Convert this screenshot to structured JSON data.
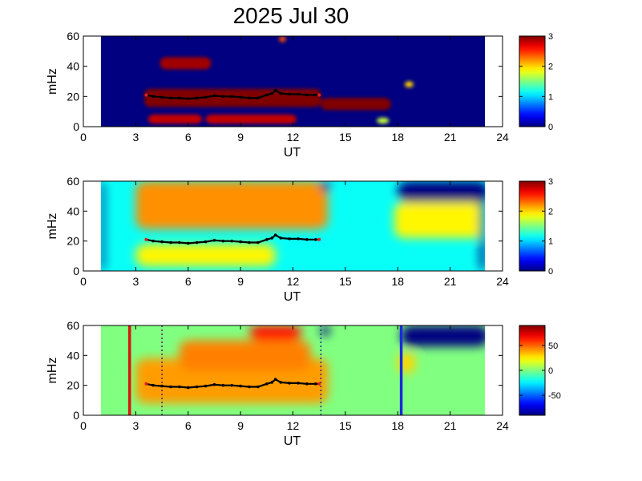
{
  "title": "2025 Jul 30",
  "chart_data": [
    {
      "type": "heatmap",
      "xlabel": "UT",
      "ylabel": "mHz",
      "xlim": [
        0,
        24
      ],
      "ylim": [
        0,
        60
      ],
      "xticks": [
        "0",
        "3",
        "6",
        "9",
        "12",
        "15",
        "18",
        "21",
        "24"
      ],
      "yticks": [
        "0",
        "20",
        "40",
        "60"
      ],
      "data_extent_ut": [
        1,
        23
      ],
      "colorbar": {
        "range": [
          0,
          3
        ],
        "ticks": [
          "0",
          "1",
          "2",
          "3"
        ]
      },
      "background_value": 0,
      "blobs": [
        {
          "ut": [
            3.5,
            13.6
          ],
          "mhz": [
            13,
            25
          ],
          "value": 3.0
        },
        {
          "ut": [
            13.6,
            17.6
          ],
          "mhz": [
            11,
            19
          ],
          "value": 3.0
        },
        {
          "ut": [
            4.4,
            7.3
          ],
          "mhz": [
            38,
            46
          ],
          "value": 2.9
        },
        {
          "ut": [
            3.7,
            6.8
          ],
          "mhz": [
            2,
            8
          ],
          "value": 2.8
        },
        {
          "ut": [
            7.0,
            12.2
          ],
          "mhz": [
            2,
            8
          ],
          "value": 2.8
        },
        {
          "ut": [
            16.8,
            17.5
          ],
          "mhz": [
            2,
            6
          ],
          "value": 1.7
        },
        {
          "ut": [
            11.2,
            11.6
          ],
          "mhz": [
            56,
            60
          ],
          "value": 2.4
        },
        {
          "ut": [
            18.4,
            18.9
          ],
          "mhz": [
            26,
            30
          ],
          "value": 2.0
        }
      ],
      "trace": {
        "ut": [
          3.6,
          4.0,
          4.5,
          5.0,
          5.5,
          6.0,
          6.5,
          7.0,
          7.5,
          8.0,
          8.5,
          9.0,
          9.5,
          10.0,
          10.5,
          10.8,
          11.0,
          11.3,
          11.8,
          12.3,
          12.8,
          13.3,
          13.5
        ],
        "mhz": [
          21,
          20,
          19.5,
          19,
          19,
          18.5,
          19,
          19.5,
          20.5,
          20,
          20,
          19.5,
          19,
          19,
          21,
          22,
          24,
          22,
          21.5,
          21.5,
          21,
          21,
          21
        ]
      }
    },
    {
      "type": "heatmap",
      "xlabel": "UT",
      "ylabel": "mHz",
      "xlim": [
        0,
        24
      ],
      "ylim": [
        0,
        60
      ],
      "xticks": [
        "0",
        "3",
        "6",
        "9",
        "12",
        "15",
        "18",
        "21",
        "24"
      ],
      "yticks": [
        "0",
        "20",
        "40",
        "60"
      ],
      "data_extent_ut": [
        1,
        23
      ],
      "colorbar": {
        "range": [
          0,
          3
        ],
        "ticks": [
          "0",
          "1",
          "2",
          "3"
        ]
      },
      "background_value": 1.15,
      "blobs": [
        {
          "ut": [
            7.5,
            12.5
          ],
          "mhz": [
            40,
            60
          ],
          "value": 3.0
        },
        {
          "ut": [
            8.0,
            11.5
          ],
          "mhz": [
            30,
            46
          ],
          "value": 2.8
        },
        {
          "ut": [
            3.0,
            14.0
          ],
          "mhz": [
            28,
            60
          ],
          "value": 2.2
        },
        {
          "ut": [
            3.5,
            9.5
          ],
          "mhz": [
            6,
            16
          ],
          "value": 2.2
        },
        {
          "ut": [
            3.0,
            11.0
          ],
          "mhz": [
            3,
            18
          ],
          "value": 1.9
        },
        {
          "ut": [
            17.8,
            20.2
          ],
          "mhz": [
            26,
            40
          ],
          "value": 2.6
        },
        {
          "ut": [
            17.8,
            23.0
          ],
          "mhz": [
            22,
            46
          ],
          "value": 1.9
        },
        {
          "ut": [
            18.0,
            23.2
          ],
          "mhz": [
            46,
            60
          ],
          "value": 0.0
        },
        {
          "ut": [
            1.0,
            1.2
          ],
          "mhz": [
            0,
            60
          ],
          "value": 0.0
        },
        {
          "ut": [
            22.7,
            23.0
          ],
          "mhz": [
            0,
            60
          ],
          "value": 0.0
        },
        {
          "ut": [
            13.6,
            14.1
          ],
          "mhz": [
            53,
            60
          ],
          "value": 0.0
        }
      ],
      "trace": {
        "ut": [
          3.6,
          4.0,
          4.5,
          5.0,
          5.5,
          6.0,
          6.5,
          7.0,
          7.5,
          8.0,
          8.5,
          9.0,
          9.5,
          10.0,
          10.5,
          10.8,
          11.0,
          11.3,
          11.8,
          12.3,
          12.8,
          13.3,
          13.5
        ],
        "mhz": [
          21,
          20,
          19.5,
          19,
          19,
          18.5,
          19,
          19.5,
          20.5,
          20,
          20,
          19.5,
          19,
          19,
          21,
          22,
          24,
          22,
          21.5,
          21.5,
          21,
          21,
          21
        ]
      }
    },
    {
      "type": "heatmap",
      "xlabel": "UT",
      "ylabel": "mHz",
      "xlim": [
        0,
        24
      ],
      "ylim": [
        0,
        60
      ],
      "xticks": [
        "0",
        "3",
        "6",
        "9",
        "12",
        "15",
        "18",
        "21",
        "24"
      ],
      "yticks": [
        "0",
        "20",
        "40",
        "60"
      ],
      "data_extent_ut": [
        1,
        23
      ],
      "colorbar": {
        "range": [
          -90,
          90
        ],
        "ticks": [
          "-50",
          "0",
          "50"
        ]
      },
      "background_value": 0,
      "blobs": [
        {
          "ut": [
            3.8,
            13.5
          ],
          "mhz": [
            14,
            30
          ],
          "value": 70
        },
        {
          "ut": [
            3.0,
            14.0
          ],
          "mhz": [
            8,
            38
          ],
          "value": 40
        },
        {
          "ut": [
            5.5,
            13.0
          ],
          "mhz": [
            30,
            50
          ],
          "value": 45
        },
        {
          "ut": [
            9.5,
            12.5
          ],
          "mhz": [
            50,
            60
          ],
          "value": 65
        },
        {
          "ut": [
            18.2,
            23.2
          ],
          "mhz": [
            46,
            60
          ],
          "value": -90
        },
        {
          "ut": [
            13.6,
            14.1
          ],
          "mhz": [
            53,
            60
          ],
          "value": -90
        },
        {
          "ut": [
            18.0,
            19.0
          ],
          "mhz": [
            28,
            42
          ],
          "value": 30
        }
      ],
      "trace": {
        "ut": [
          3.6,
          4.0,
          4.5,
          5.0,
          5.5,
          6.0,
          6.5,
          7.0,
          7.5,
          8.0,
          8.5,
          9.0,
          9.5,
          10.0,
          10.5,
          10.8,
          11.0,
          11.3,
          11.8,
          12.3,
          12.8,
          13.3,
          13.5
        ],
        "mhz": [
          21,
          20,
          19.5,
          19,
          19,
          18.5,
          19,
          19.5,
          20.5,
          20,
          20,
          19.5,
          19,
          19,
          21,
          22,
          24,
          22,
          21.5,
          21.5,
          21,
          21,
          21
        ]
      },
      "vertical_lines": [
        {
          "ut": 2.65,
          "color": "#d41a10",
          "style": "solid"
        },
        {
          "ut": 18.2,
          "color": "#1a2adc",
          "style": "solid"
        },
        {
          "ut": 4.5,
          "color": "#5a1a60",
          "style": "dotted"
        },
        {
          "ut": 13.6,
          "color": "#1a2a80",
          "style": "dotted"
        }
      ]
    }
  ]
}
